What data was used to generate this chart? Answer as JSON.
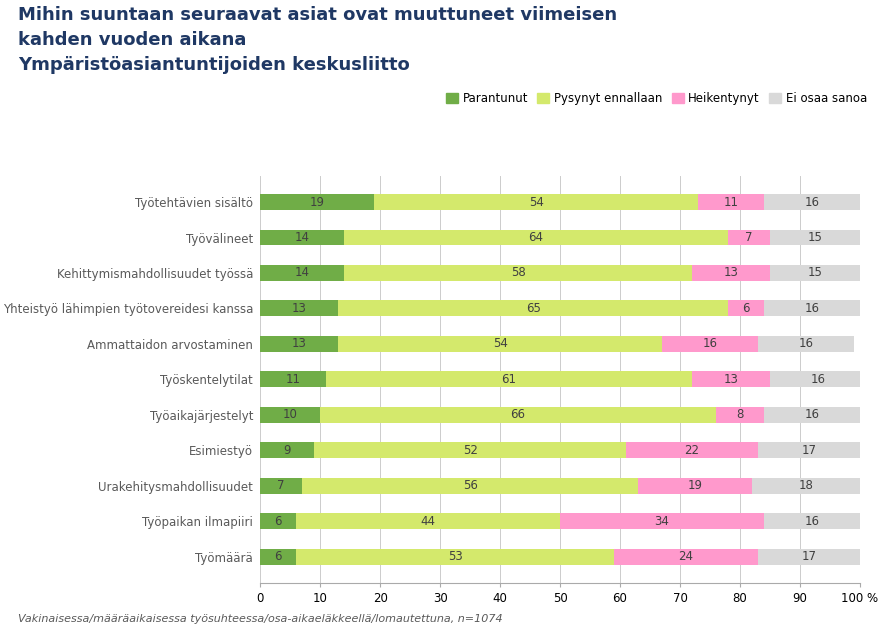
{
  "title": "Mihin suuntaan seuraavat asiat ovat muuttuneet viimeisen\nkahden vuoden aikana\nYmpäristöasiantuntijoiden keskusliitto",
  "categories": [
    "Työtehtävien sisältö",
    "Työvälineet",
    "Kehittymismahdollisuudet työssä",
    "Yhteistyö lähimpien työtovereidesi kanssa",
    "Ammattaidon arvostaminen",
    "Työskentelytilat",
    "Työaikajärjestelyt",
    "Esimiestyö",
    "Urakehitysmahdollisuudet",
    "Työpaikan ilmapiiri",
    "Työmäärä"
  ],
  "series": {
    "Parantunut": [
      19,
      14,
      14,
      13,
      13,
      11,
      10,
      9,
      7,
      6,
      6
    ],
    "Pysynyt ennallaan": [
      54,
      64,
      58,
      65,
      54,
      61,
      66,
      52,
      56,
      44,
      53
    ],
    "Heikentynyt": [
      11,
      7,
      13,
      6,
      16,
      13,
      8,
      22,
      19,
      34,
      24
    ],
    "Ei osaa sanoa": [
      16,
      15,
      15,
      16,
      16,
      16,
      16,
      17,
      18,
      16,
      17
    ]
  },
  "colors": {
    "Parantunut": "#70AD47",
    "Pysynyt ennallaan": "#D4E96C",
    "Heikentynyt": "#FF99CC",
    "Ei osaa sanoa": "#D9D9D9"
  },
  "legend_order": [
    "Parantunut",
    "Pysynyt ennallaan",
    "Heikentynyt",
    "Ei osaa sanoa"
  ],
  "xlim": [
    0,
    100
  ],
  "xticks": [
    0,
    10,
    20,
    30,
    40,
    50,
    60,
    70,
    80,
    90,
    100
  ],
  "xtick_labels": [
    "0",
    "10",
    "20",
    "30",
    "40",
    "50",
    "60",
    "70",
    "80",
    "90",
    "100 %"
  ],
  "footnote": "Vakinaisessa/määräaikaisessa työsuhteessa/osa-aikaeläkkeellä/lomautettuna, n=1074",
  "title_fontsize": 13,
  "label_fontsize": 8.5,
  "bar_label_fontsize": 8.5,
  "legend_fontsize": 8.5,
  "footnote_fontsize": 8,
  "bar_height": 0.45,
  "background_color": "#FFFFFF",
  "title_color": "#1F3864",
  "ylabel_color": "#595959",
  "text_color": "#404040"
}
